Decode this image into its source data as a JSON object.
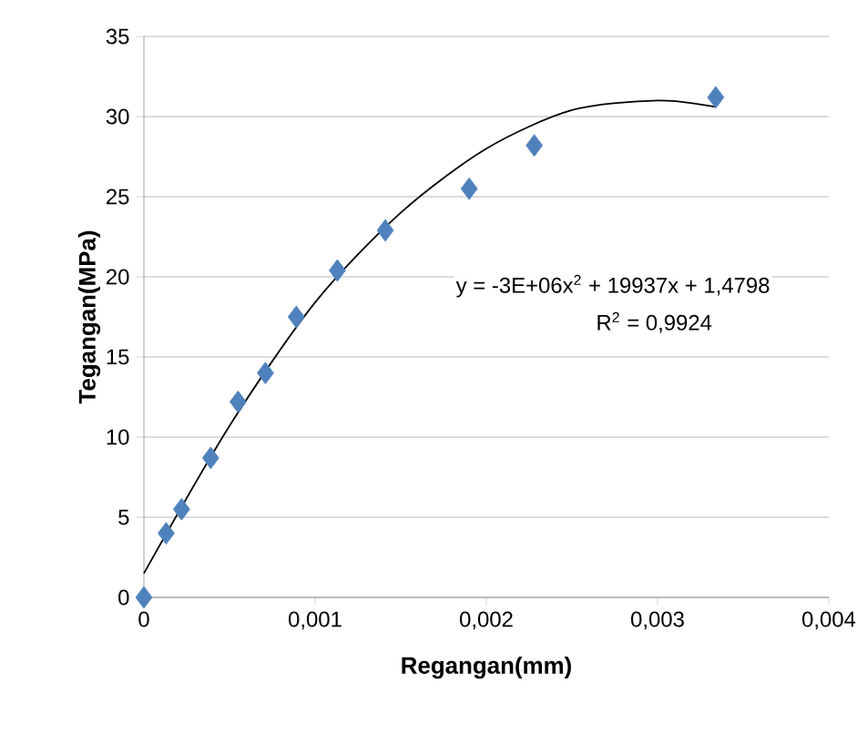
{
  "chart_data": {
    "type": "scatter",
    "xlabel": "Regangan(mm)",
    "ylabel": "Tegangan(MPa)",
    "xlim": [
      0,
      0.004
    ],
    "ylim": [
      0,
      35
    ],
    "xticks": [
      0,
      {
        "value": 0.001,
        "label": "0,001"
      },
      {
        "value": 0.002,
        "label": "0,002"
      },
      {
        "value": 0.003,
        "label": "0,003"
      },
      {
        "value": 0.004,
        "label": "0,004"
      }
    ],
    "yticks": [
      0,
      5,
      10,
      15,
      20,
      25,
      30,
      35
    ],
    "grid": "y",
    "marker": "diamond",
    "annotations": [
      "y = -3E+06x$^{2}$ + 19937x + 1,4798",
      "R$^{2}$ = 0,9924"
    ],
    "series": [
      {
        "color": "#4f81bd",
        "x": [
          0,
          0.00013,
          0.00022,
          0.00039,
          0.00055,
          0.00071,
          0.00089,
          0.00113,
          0.00141,
          0.0019,
          0.00228,
          0.00334
        ],
        "values": [
          0,
          4,
          5.5,
          8.7,
          12.2,
          14.0,
          17.5,
          20.4,
          22.9,
          25.5,
          28.2,
          31.2
        ]
      },
      {
        "type": "line",
        "color": "#000000",
        "marker": "none",
        "line_style": "solid",
        "x": [
          0,
          0.0005,
          0.001,
          0.0015,
          0.002,
          0.0025,
          0.003,
          0.00334
        ],
        "values": [
          1.5,
          10.7,
          18.4,
          24.0,
          28.0,
          30.4,
          31.0,
          30.6
        ]
      }
    ]
  }
}
